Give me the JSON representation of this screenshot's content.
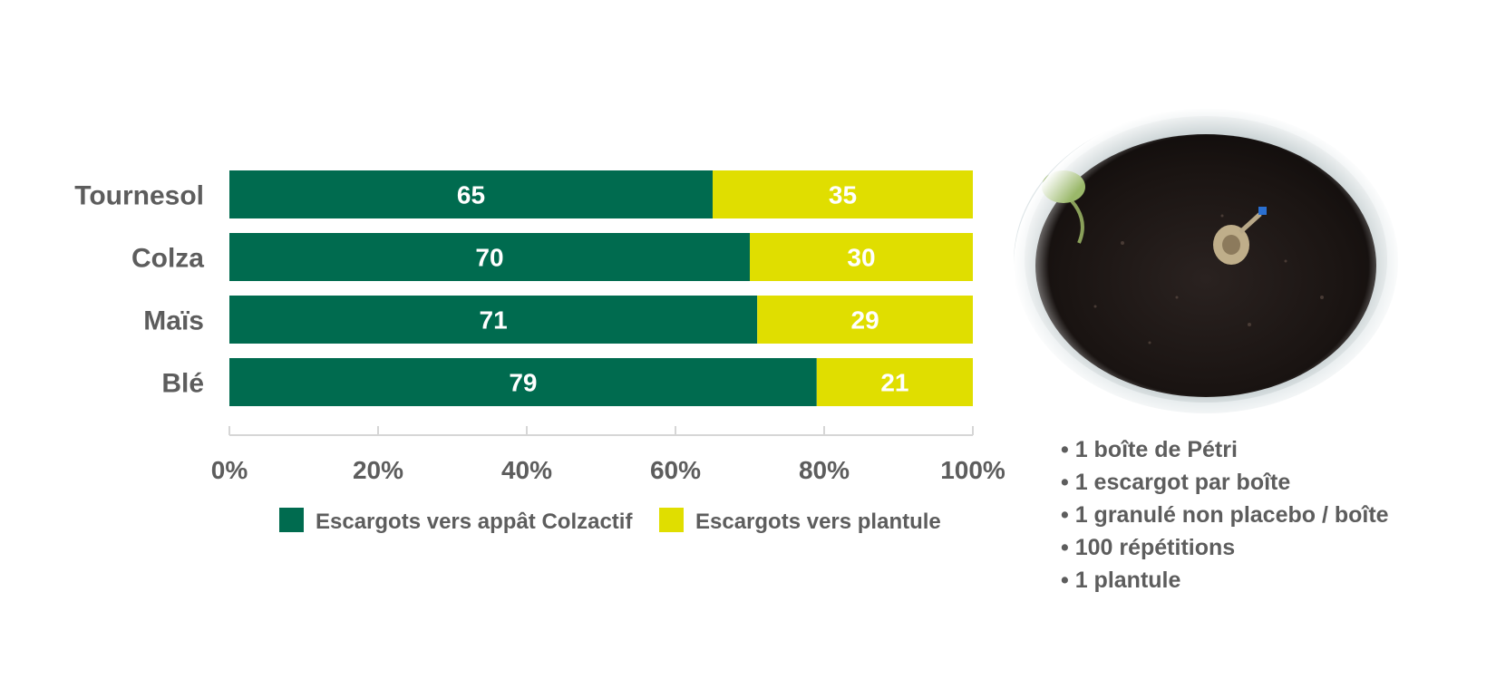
{
  "chart_data": {
    "type": "bar",
    "orientation": "horizontal",
    "stacked": true,
    "percent": true,
    "categories": [
      "Tournesol",
      "Colza",
      "Maïs",
      "Blé"
    ],
    "series": [
      {
        "name": "Escargots vers appât Colzactif",
        "values": [
          65,
          70,
          71,
          79
        ],
        "color": "#006b4f"
      },
      {
        "name": "Escargots vers plantule",
        "values": [
          35,
          30,
          29,
          21
        ],
        "color": "#e0de00"
      }
    ],
    "xlim": [
      0,
      100
    ],
    "xticks": [
      "0%",
      "20%",
      "40%",
      "60%",
      "80%",
      "100%"
    ],
    "grid": false,
    "legend_position": "bottom"
  },
  "notes": [
    "1 boîte de Pétri",
    "1 escargot par boîte",
    "1 granulé non placebo / boîte",
    "100 répétitions",
    "1 plantule"
  ]
}
